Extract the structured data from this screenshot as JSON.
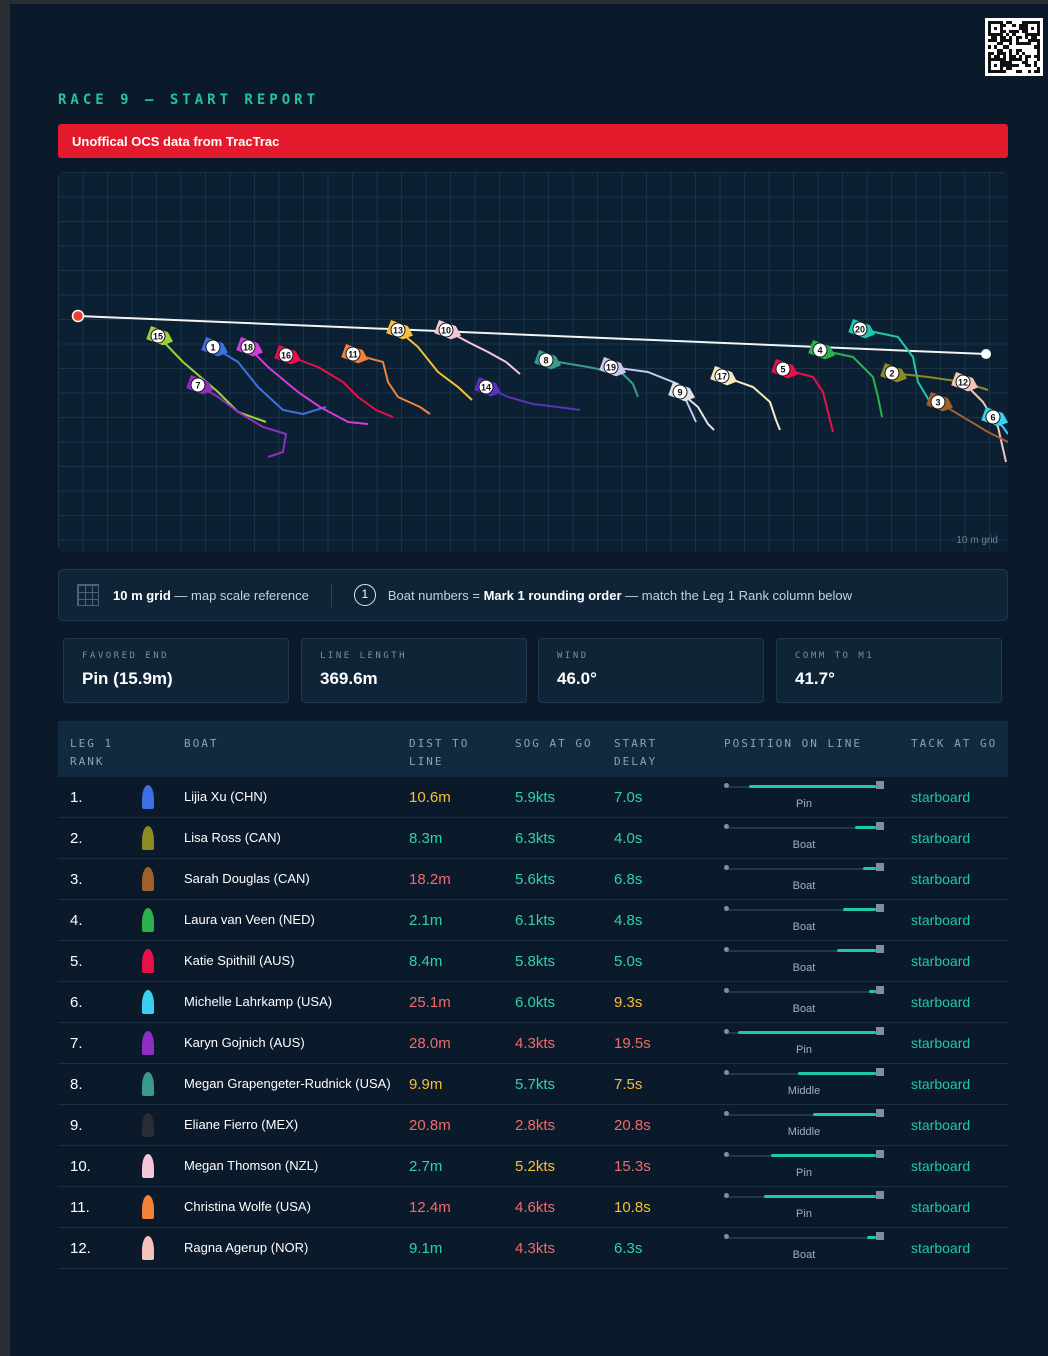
{
  "header": {
    "title": "RACE 9 — START REPORT",
    "banner": "Unoffical OCS data from TracTrac"
  },
  "map": {
    "grid_note": "10 m grid",
    "boat_labels": [
      "15",
      "1",
      "18",
      "16",
      "11",
      "13",
      "10",
      "7",
      "14",
      "8",
      "19",
      "9",
      "17",
      "5",
      "4",
      "20",
      "2",
      "12",
      "3",
      "6"
    ]
  },
  "legend": {
    "grid_bold": "10 m grid",
    "grid_text": " — map scale reference",
    "circle_number": "1",
    "boats_text_a": "Boat numbers = ",
    "boats_bold": "Mark 1 rounding order",
    "boats_text_b": " — match the Leg 1 Rank column below"
  },
  "stats": [
    {
      "label": "FAVORED END",
      "value": "Pin (15.9m)"
    },
    {
      "label": "LINE LENGTH",
      "value": "369.6m"
    },
    {
      "label": "WIND",
      "value": "46.0°"
    },
    {
      "label": "COMM TO M1",
      "value": "41.7°"
    }
  ],
  "table": {
    "headers": {
      "rank": "LEG 1\nRANK",
      "boat": "BOAT",
      "dist": "DIST TO\nLINE",
      "sog": "SOG AT GO",
      "delay": "START\nDELAY",
      "position": "POSITION ON LINE",
      "tack": "TACK AT GO"
    },
    "rows": [
      {
        "rank": "1.",
        "color": "#3f6fe0",
        "name": "Lijia Xu (CHN)",
        "dist": "10.6m",
        "sog": "5.9kts",
        "delay": "7.0s",
        "pos_fraction": 0.85,
        "pos_label": "Pin",
        "tack": "starboard"
      },
      {
        "rank": "2.",
        "color": "#8e8a22",
        "name": "Lisa Ross (CAN)",
        "dist": "8.3m",
        "sog": "6.3kts",
        "delay": "4.0s",
        "pos_fraction": 0.14,
        "pos_label": "Boat",
        "tack": "starboard"
      },
      {
        "rank": "3.",
        "color": "#a0602b",
        "name": "Sarah Douglas (CAN)",
        "dist": "18.2m",
        "sog": "5.6kts",
        "delay": "6.8s",
        "pos_fraction": 0.09,
        "pos_label": "Boat",
        "tack": "starboard"
      },
      {
        "rank": "4.",
        "color": "#2bb24c",
        "name": "Laura van Veen (NED)",
        "dist": "2.1m",
        "sog": "6.1kts",
        "delay": "4.8s",
        "pos_fraction": 0.22,
        "pos_label": "Boat",
        "tack": "starboard"
      },
      {
        "rank": "5.",
        "color": "#e8104a",
        "name": "Katie Spithill (AUS)",
        "dist": "8.4m",
        "sog": "5.8kts",
        "delay": "5.0s",
        "pos_fraction": 0.26,
        "pos_label": "Boat",
        "tack": "starboard"
      },
      {
        "rank": "6.",
        "color": "#3ad0f2",
        "name": "Michelle Lahrkamp (USA)",
        "dist": "25.1m",
        "sog": "6.0kts",
        "delay": "9.3s",
        "pos_fraction": 0.05,
        "pos_label": "Boat",
        "tack": "starboard"
      },
      {
        "rank": "7.",
        "color": "#8f2fc2",
        "name": "Karyn Gojnich (AUS)",
        "dist": "28.0m",
        "sog": "4.3kts",
        "delay": "19.5s",
        "pos_fraction": 0.92,
        "pos_label": "Pin",
        "tack": "starboard"
      },
      {
        "rank": "8.",
        "color": "#3a9a8c",
        "name": "Megan Grapengeter-Rudnick (USA)",
        "dist": "9.9m",
        "sog": "5.7kts",
        "delay": "7.5s",
        "pos_fraction": 0.52,
        "pos_label": "Middle",
        "tack": "starboard"
      },
      {
        "rank": "9.",
        "color": "#2a2d31",
        "name": "Eliane Fierro (MEX)",
        "dist": "20.8m",
        "sog": "2.8kts",
        "delay": "20.8s",
        "pos_fraction": 0.42,
        "pos_label": "Middle",
        "tack": "starboard"
      },
      {
        "rank": "10.",
        "color": "#f7c6d6",
        "name": "Megan Thomson (NZL)",
        "dist": "2.7m",
        "sog": "5.2kts",
        "delay": "15.3s",
        "pos_fraction": 0.7,
        "pos_label": "Pin",
        "tack": "starboard"
      },
      {
        "rank": "11.",
        "color": "#f2823a",
        "name": "Christina Wolfe (USA)",
        "dist": "12.4m",
        "sog": "4.6kts",
        "delay": "10.8s",
        "pos_fraction": 0.75,
        "pos_label": "Pin",
        "tack": "starboard"
      },
      {
        "rank": "12.",
        "color": "#f6c3bb",
        "name": "Ragna Agerup (NOR)",
        "dist": "9.1m",
        "sog": "4.3kts",
        "delay": "6.3s",
        "pos_fraction": 0.06,
        "pos_label": "Boat",
        "tack": "starboard"
      }
    ],
    "value_classes": {
      "dist": [
        "y",
        "g",
        "r",
        "g",
        "g",
        "r",
        "r",
        "y",
        "r",
        "g",
        "r",
        "g"
      ],
      "sog": [
        "g",
        "g",
        "g",
        "g",
        "g",
        "g",
        "r",
        "g",
        "r",
        "y",
        "r",
        "r"
      ],
      "delay": [
        "g",
        "g",
        "g",
        "g",
        "g",
        "y",
        "r",
        "y",
        "r",
        "r",
        "y",
        "g"
      ]
    }
  }
}
